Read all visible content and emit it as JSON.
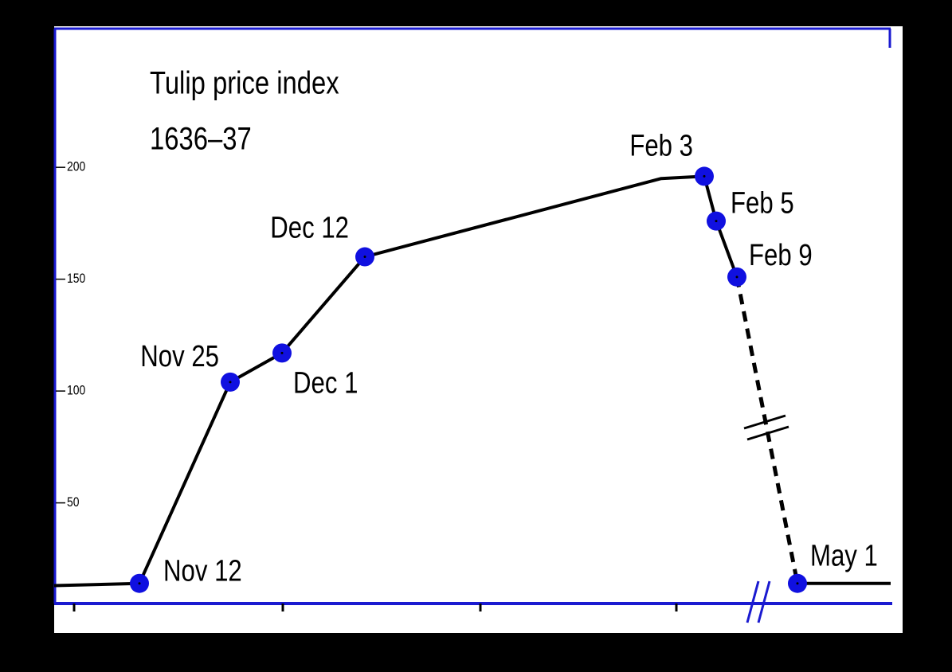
{
  "chart_data": {
    "type": "line",
    "title": [
      "Tulip price index",
      "1636–37"
    ],
    "categories": [
      null,
      "Nov 12",
      "Nov 25",
      "Dec 1",
      "Dec 12",
      null,
      "Feb 3",
      "Feb 5",
      "Feb 9",
      "May 1",
      null
    ],
    "values": [
      13,
      14,
      104,
      117,
      160,
      195,
      196,
      176,
      151,
      14,
      14
    ],
    "color": "#000000",
    "marker_color": "#1010e0",
    "axis_color": "#1a1ad0",
    "ylim": [
      5,
      262
    ],
    "yticks": [
      50,
      100,
      150,
      200
    ],
    "grid": false
  }
}
